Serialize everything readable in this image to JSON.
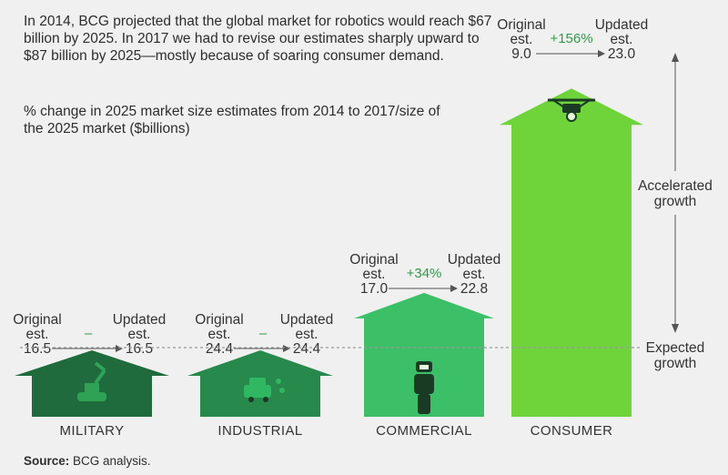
{
  "intro": "In 2014, BCG projected that the global market for robotics would reach $67 billion by 2025. In 2017 we had to revise our estimates sharply upward to $87 billion by 2025—mostly because of soaring consumer demand.",
  "source_label": "Source:",
  "source_text": "BCG analysis.",
  "chart_data": {
    "type": "bar",
    "title": "",
    "subtitle": "% change in 2025 market size estimates from 2014 to 2017/size of the 2025 market ($billions)",
    "categories": [
      "MILITARY",
      "INDUSTRIAL",
      "COMMERCIAL",
      "CONSUMER"
    ],
    "original_label": "Original est.",
    "updated_label": "Updated est.",
    "series": [
      {
        "name": "Original est.",
        "values": [
          16.5,
          24.4,
          17.0,
          9.0
        ]
      },
      {
        "name": "Updated est.",
        "values": [
          16.5,
          24.4,
          22.8,
          23.0
        ]
      }
    ],
    "pct_change": [
      "–",
      "–",
      "+34%",
      "+156%"
    ],
    "original_text": [
      "16.5",
      "24.4",
      "17.0",
      "9.0"
    ],
    "updated_text": [
      "16.5",
      "24.4",
      "22.8",
      "23.0"
    ],
    "annotations": {
      "accelerated": "Accelerated growth",
      "expected": "Expected growth"
    },
    "icons": [
      "robot-arm-icon",
      "car-assembly-icon",
      "humanoid-robot-icon",
      "drone-icon"
    ],
    "colors": [
      "#1f6b3d",
      "#27894b",
      "#3cc067",
      "#6ed43a"
    ],
    "grid": false
  }
}
